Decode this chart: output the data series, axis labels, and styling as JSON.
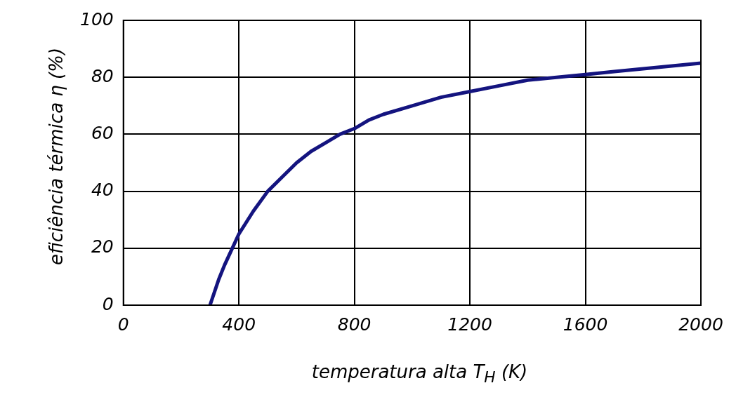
{
  "chart_data": {
    "type": "line",
    "xlabel": "temperatura alta T$_{H}$ (K)",
    "ylabel": "eficiência térmica η (%)",
    "x": [
      300,
      330,
      350,
      400,
      450,
      500,
      550,
      600,
      650,
      700,
      750,
      800,
      850,
      900,
      1000,
      1100,
      1200,
      1300,
      1400,
      1500,
      1600,
      1700,
      1800,
      1900,
      2000
    ],
    "series": [
      {
        "color": "#14147f",
        "values": [
          0,
          9,
          14,
          25,
          33,
          40,
          45,
          50,
          54,
          57,
          60,
          62,
          65,
          67,
          70,
          73,
          75,
          77,
          79,
          80,
          81,
          82,
          83,
          84,
          85
        ]
      }
    ],
    "xlim": [
      0,
      2000
    ],
    "xticks": [
      0,
      400,
      800,
      1200,
      1600,
      2000
    ],
    "ylim": [
      0,
      100
    ],
    "yticks": [
      0,
      20,
      40,
      60,
      80,
      100
    ],
    "grid": true,
    "legend": false,
    "marker": "none",
    "line_style": "solid"
  }
}
